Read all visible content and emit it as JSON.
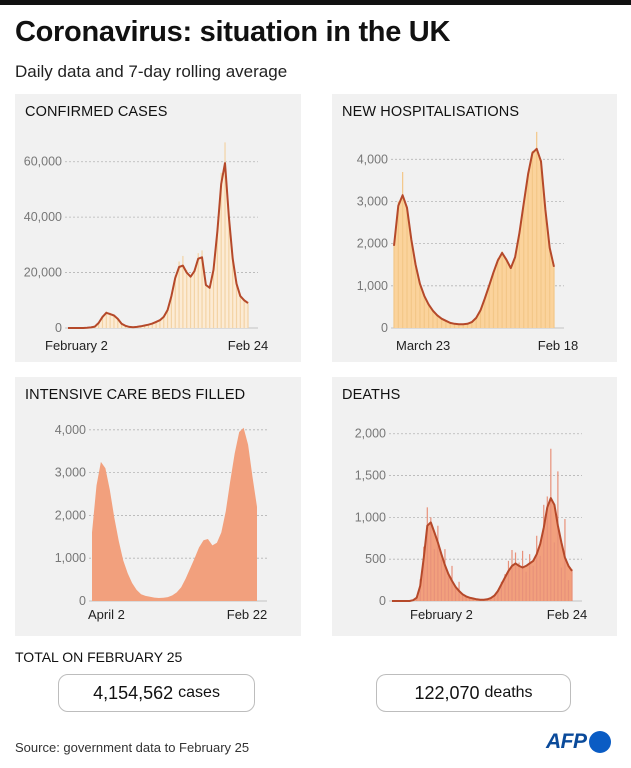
{
  "header": {
    "title": "Coronavirus: situation in the UK",
    "subtitle": "Daily data and 7-day rolling average"
  },
  "chart_data": [
    {
      "id": "cases",
      "type": "area",
      "title": "CONFIRMED CASES",
      "ylim": [
        0,
        70000
      ],
      "yticks": [
        0,
        20000,
        40000,
        60000
      ],
      "ytick_labels": [
        "0",
        "20,000",
        "40,000",
        "60,000"
      ],
      "x_labels": [
        "February 2",
        "Feb 24"
      ],
      "fill": "#fcebd4",
      "line": "#b5492a",
      "daily_color": "#f3d3a5",
      "series": [
        {
          "name": "daily",
          "values": [
            0,
            0,
            0,
            0,
            10,
            60,
            200,
            500,
            2000,
            4500,
            6000,
            5500,
            4800,
            3500,
            1500,
            800,
            400,
            300,
            400,
            600,
            900,
            1200,
            1600,
            2200,
            2800,
            4000,
            6500,
            12000,
            19000,
            24000,
            26000,
            21000,
            19000,
            21000,
            27000,
            28000,
            16000,
            15000,
            22000,
            36000,
            56000,
            67000,
            42000,
            26000,
            17000,
            12000,
            10500,
            9500
          ]
        },
        {
          "name": "7-day average",
          "values": [
            0,
            0,
            0,
            0,
            10,
            60,
            200,
            500,
            1800,
            4000,
            5500,
            5000,
            4500,
            3300,
            1500,
            800,
            400,
            300,
            400,
            600,
            900,
            1200,
            1600,
            2200,
            2800,
            4000,
            6500,
            11500,
            18000,
            22000,
            22500,
            20000,
            18500,
            20500,
            25000,
            25500,
            15500,
            14500,
            21000,
            35000,
            52000,
            59500,
            40000,
            25000,
            16000,
            11500,
            10000,
            9000
          ]
        }
      ]
    },
    {
      "id": "hosp",
      "type": "area",
      "title": "NEW HOSPITALISATIONS",
      "ylim": [
        0,
        4600
      ],
      "yticks": [
        0,
        1000,
        2000,
        3000,
        4000
      ],
      "ytick_labels": [
        "0",
        "1,000",
        "2,000",
        "3,000",
        "4,000"
      ],
      "x_labels": [
        "March 23",
        "Feb 18"
      ],
      "fill": "#fbd39c",
      "line": "#b5492a",
      "daily_color": "#f3c788",
      "series": [
        {
          "name": "daily",
          "values": [
            2000,
            3000,
            3700,
            2900,
            2100,
            1500,
            1050,
            760,
            560,
            410,
            300,
            220,
            170,
            120,
            100,
            90,
            90,
            100,
            140,
            240,
            420,
            700,
            1000,
            1320,
            1650,
            1820,
            1650,
            1450,
            1700,
            2300,
            3000,
            3700,
            4200,
            4650,
            4000,
            2800,
            1900,
            1450
          ]
        },
        {
          "name": "7-day average",
          "values": [
            1950,
            2900,
            3150,
            2850,
            2100,
            1500,
            1050,
            760,
            560,
            410,
            300,
            220,
            170,
            120,
            100,
            90,
            90,
            100,
            140,
            240,
            420,
            700,
            1000,
            1320,
            1600,
            1780,
            1620,
            1420,
            1680,
            2250,
            2950,
            3650,
            4150,
            4250,
            3950,
            2800,
            1900,
            1450
          ]
        }
      ]
    },
    {
      "id": "icu",
      "type": "area",
      "title": "INTENSIVE CARE BEDS FILLED",
      "ylim": [
        0,
        4300
      ],
      "yticks": [
        0,
        1000,
        2000,
        3000,
        4000
      ],
      "ytick_labels": [
        "0",
        "1,000",
        "2,000",
        "3,000",
        "4,000"
      ],
      "x_labels": [
        "April 2",
        "Feb 22"
      ],
      "fill": "#f2a07d",
      "line": null,
      "daily_color": null,
      "series": [
        {
          "name": "beds filled",
          "values": [
            1600,
            2700,
            3250,
            3100,
            2600,
            1950,
            1400,
            950,
            650,
            420,
            260,
            160,
            120,
            100,
            80,
            70,
            75,
            90,
            130,
            200,
            320,
            520,
            760,
            1000,
            1250,
            1420,
            1450,
            1300,
            1360,
            1600,
            2100,
            2800,
            3450,
            3950,
            4050,
            3650,
            2900,
            2200
          ]
        }
      ]
    },
    {
      "id": "deaths",
      "type": "area",
      "title": "DEATHS",
      "ylim": [
        0,
        2200
      ],
      "yticks": [
        0,
        500,
        1000,
        1500,
        2000
      ],
      "ytick_labels": [
        "0",
        "500",
        "1,000",
        "1,500",
        "2,000"
      ],
      "x_labels": [
        "February 2",
        "Feb 24"
      ],
      "fill": "#f2a07d",
      "line": "#b5492a",
      "daily_color": "#e8917a",
      "series": [
        {
          "name": "daily",
          "values": [
            0,
            0,
            0,
            0,
            0,
            0,
            10,
            60,
            260,
            650,
            1120,
            1000,
            620,
            900,
            500,
            620,
            300,
            420,
            160,
            230,
            90,
            60,
            40,
            30,
            20,
            15,
            15,
            20,
            40,
            70,
            130,
            230,
            320,
            480,
            610,
            580,
            460,
            600,
            350,
            560,
            420,
            780,
            540,
            1150,
            1250,
            1820,
            700,
            1550,
            400,
            980,
            250,
            380
          ]
        },
        {
          "name": "7-day average",
          "values": [
            0,
            0,
            0,
            0,
            0,
            0,
            10,
            40,
            180,
            520,
            900,
            940,
            820,
            700,
            560,
            430,
            320,
            240,
            170,
            120,
            80,
            55,
            40,
            30,
            20,
            15,
            15,
            20,
            35,
            65,
            120,
            200,
            280,
            360,
            420,
            450,
            420,
            400,
            420,
            450,
            480,
            560,
            680,
            880,
            1120,
            1230,
            1150,
            900,
            700,
            520,
            420,
            360
          ]
        }
      ]
    }
  ],
  "totals": {
    "label": "TOTAL ON FEBRUARY 25",
    "cases_value": "4,154,562",
    "cases_unit": "cases",
    "deaths_value": "122,070",
    "deaths_unit": "deaths"
  },
  "footer": {
    "source": "Source: government data to February 25",
    "logo": "AFP",
    "logo_color": "#0a5cc4"
  }
}
